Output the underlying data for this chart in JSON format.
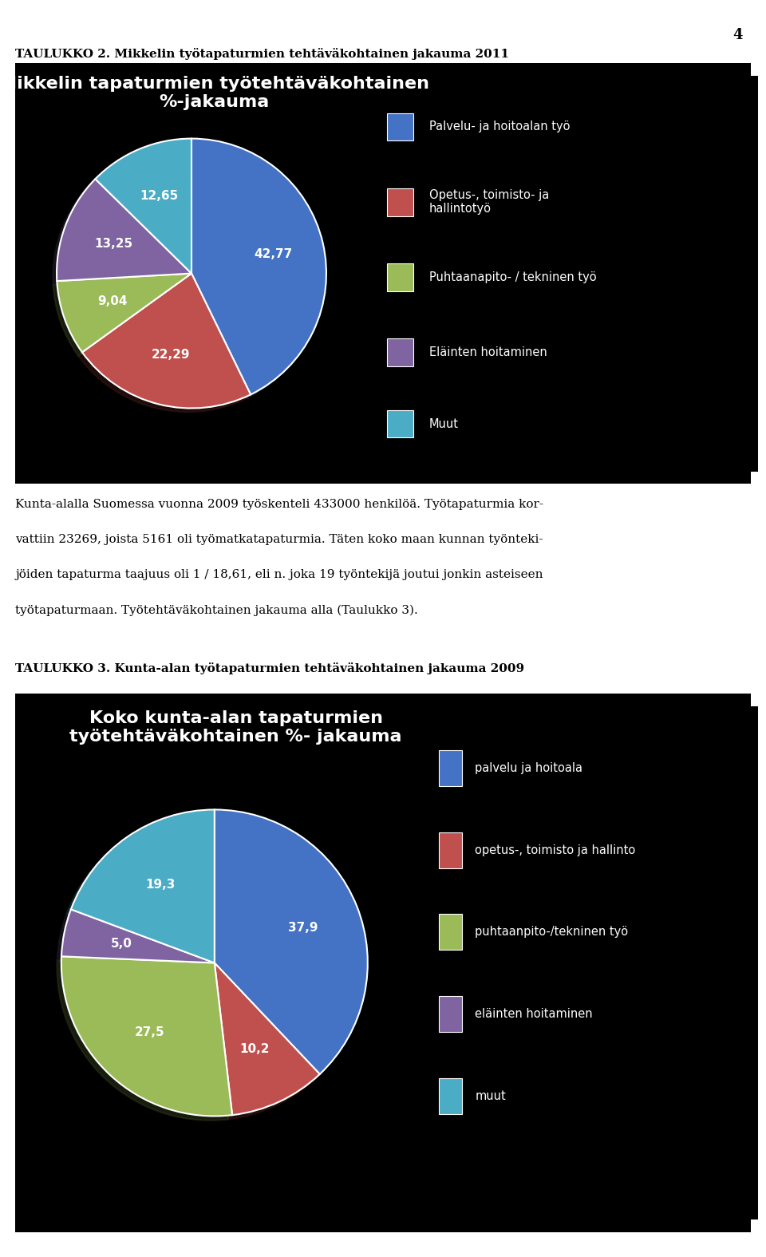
{
  "page_number": "4",
  "section1_title": "TAULUKKO 2. Mikkelin työtapaturmien tehtäväkohtainen jakauma 2011",
  "chart1_title": "Mikkelin tapaturmien työtehtäväkohtainen\n%-jakauma",
  "chart1_values": [
    42.77,
    22.29,
    9.04,
    13.25,
    12.65
  ],
  "chart1_labels": [
    "42,77",
    "22,29",
    "9,04",
    "13,25",
    "12,65"
  ],
  "chart1_colors": [
    "#4472C4",
    "#C0504D",
    "#9BBB59",
    "#8064A2",
    "#4BACC6"
  ],
  "chart1_legend": [
    "Palvelu- ja hoitoalan työ",
    "Opetus-, toimisto- ja\nhallintotyö",
    "Puhtaanapito- / tekninen työ",
    "Eläinten hoitaminen",
    "Muut"
  ],
  "chart1_legend_colors": [
    "#4472C4",
    "#C0504D",
    "#9BBB59",
    "#8064A2",
    "#4BACC6"
  ],
  "body_line1": "Kunta-alalla Suomessa vuonna 2009 työskenteli 433000 henkilöä. Työtapaturmia kor-",
  "body_line2": "vattiin 23269, joista 5161 oli työmatkatapaturmia. Täten koko maan kunnan työnteki-",
  "body_line3": "jöiden tapaturma taajuus oli 1 / 18,61, eli n. joka 19 työntekijä joutui jonkin asteiseen",
  "body_line4": "työtapaturmaan. Työtehtäväkohtainen jakauma alla (Taulukko 3).",
  "section2_title": "TAULUKKO 3. Kunta-alan työtapaturmien tehtäväkohtainen jakauma 2009",
  "chart2_title": "Koko kunta-alan tapaturmien\ntyötehtäväkohtainen %- jakauma",
  "chart2_values": [
    37.9,
    10.2,
    27.5,
    5.0,
    19.3
  ],
  "chart2_labels": [
    "37,9",
    "10,2",
    "27,5",
    "5,0",
    "19,3"
  ],
  "chart2_colors": [
    "#4472C4",
    "#C0504D",
    "#9BBB59",
    "#8064A2",
    "#4BACC6"
  ],
  "chart2_legend": [
    "palvelu ja hoitoala",
    "opetus-, toimisto ja hallinto",
    "puhtaanpito-/tekninen työ",
    "eläinten hoitaminen",
    "muut"
  ],
  "chart2_legend_colors": [
    "#4472C4",
    "#C0504D",
    "#9BBB59",
    "#8064A2",
    "#4BACC6"
  ],
  "bg_color": "#000000",
  "text_color_white": "#FFFFFF",
  "text_color_black": "#000000",
  "outer_bg": "#FFFFFF"
}
